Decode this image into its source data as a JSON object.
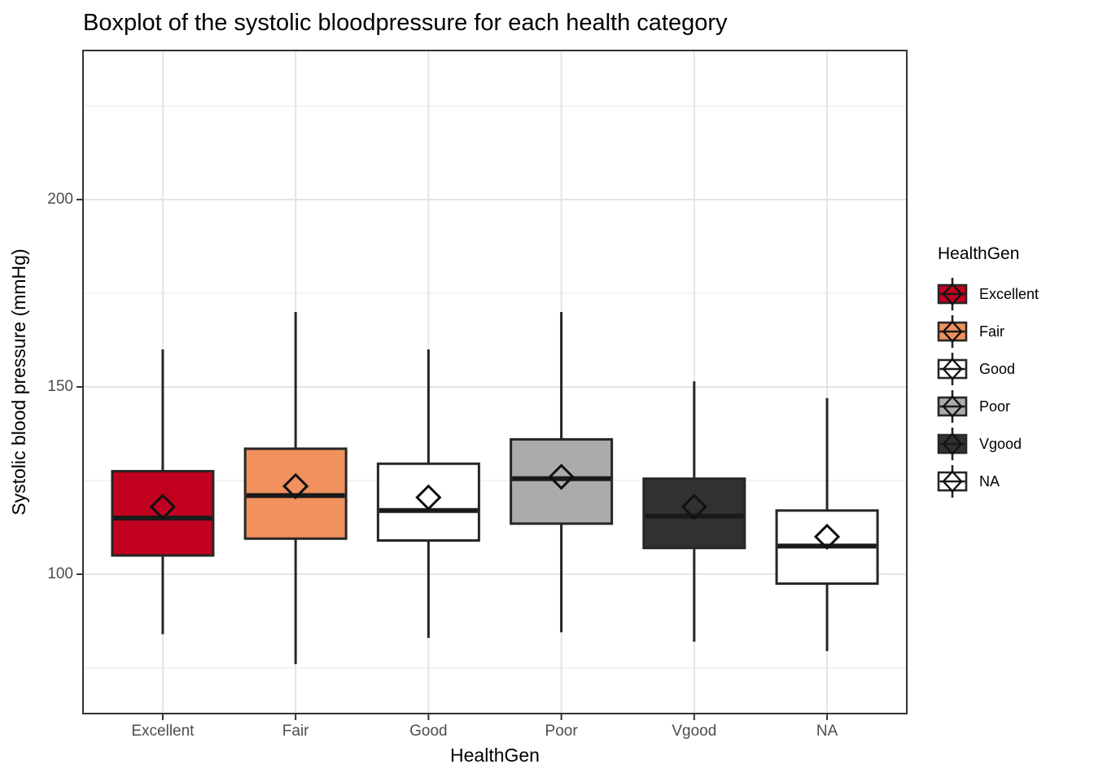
{
  "chart_data": {
    "type": "boxplot",
    "title": "Boxplot of the systolic bloodpressure for each health category",
    "xlabel": "HealthGen",
    "ylabel": "Systolic blood pressure (mmHg)",
    "categories": [
      "Excellent",
      "Fair",
      "Good",
      "Poor",
      "Vgood",
      "NA"
    ],
    "yticks": [
      100,
      150,
      200
    ],
    "yticks_minor": [
      75,
      125,
      175,
      225
    ],
    "ylim": [
      62.8,
      239.8
    ],
    "grid": "on",
    "legend": {
      "title": "HealthGen",
      "position": "right"
    },
    "mean_marker": "open-diamond",
    "series": [
      {
        "name": "Excellent",
        "color": "#C10020",
        "min": 84,
        "q1": 105,
        "median": 115,
        "mean": 118,
        "q3": 127.5,
        "max": 160
      },
      {
        "name": "Fair",
        "color": "#F0915E",
        "min": 76,
        "q1": 109.5,
        "median": 121,
        "mean": 123.5,
        "q3": 133.5,
        "max": 170
      },
      {
        "name": "Good",
        "color": "#FFFFFF",
        "min": 83,
        "q1": 109,
        "median": 117,
        "mean": 120.5,
        "q3": 129.5,
        "max": 160
      },
      {
        "name": "Poor",
        "color": "#ABABAB",
        "min": 84.5,
        "q1": 113.5,
        "median": 125.5,
        "mean": 126,
        "q3": 136,
        "max": 170
      },
      {
        "name": "Vgood",
        "color": "#313131",
        "min": 82,
        "q1": 107,
        "median": 115.5,
        "mean": 118,
        "q3": 125.5,
        "max": 151.5
      },
      {
        "name": "NA",
        "color": "#FFFFFF",
        "min": 79.5,
        "q1": 97.5,
        "median": 107.5,
        "mean": 110,
        "q3": 117,
        "max": 147
      }
    ],
    "style": {
      "box_border": "#262626",
      "whisker": "#262626",
      "median_line": "#1A1A1A",
      "mean_diamond": "#111111",
      "grid_major": "#E4E4E4",
      "grid_minor": "#F0F0F0",
      "panel_border": "#333333",
      "tick_mark": "#333333",
      "tick_label_color": "#4D4D4D",
      "panel_background": "#FFFFFF"
    }
  }
}
